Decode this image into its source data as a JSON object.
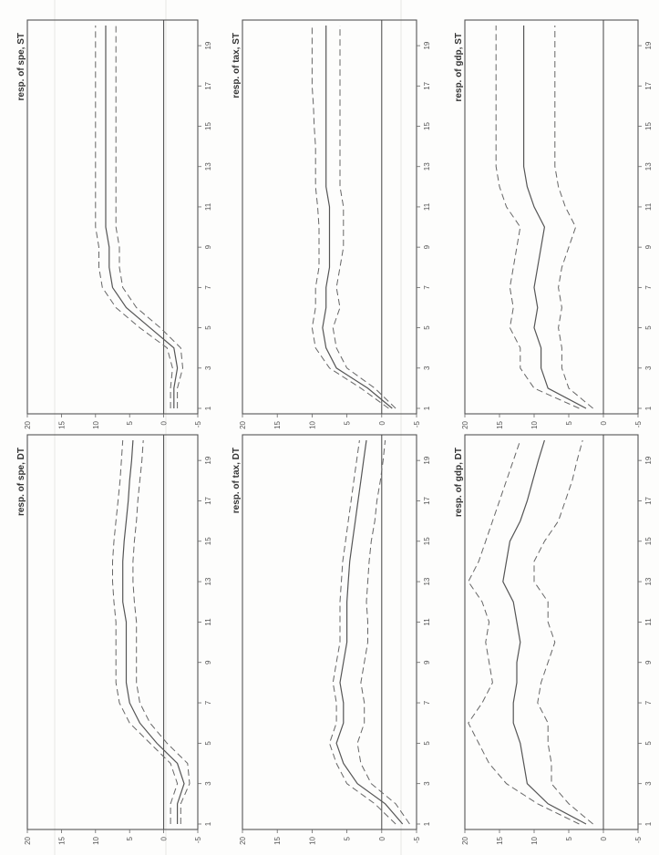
{
  "chart_data": [
    {
      "type": "line",
      "title": "resp. of spe, DT",
      "x": [
        1,
        2,
        3,
        4,
        5,
        6,
        7,
        8,
        9,
        10,
        11,
        12,
        13,
        14,
        15,
        16,
        17,
        18,
        19,
        20
      ],
      "xticks": [
        "1",
        "3",
        "5",
        "7",
        "9",
        "11",
        "13",
        "15",
        "17",
        "19"
      ],
      "yticks": [
        "-5",
        "0",
        "5",
        "10",
        "15",
        "20"
      ],
      "ylim": [
        -5,
        20
      ],
      "series": [
        {
          "role": "estimate",
          "values": [
            -2,
            -2,
            -3,
            -2,
            1,
            3.5,
            5,
            5.5,
            5.5,
            5.5,
            5.5,
            6,
            6,
            6,
            5.8,
            5.5,
            5.2,
            5,
            4.7,
            4.5
          ]
        },
        {
          "role": "upper",
          "values": [
            -1,
            -1,
            -2,
            -1,
            2,
            5,
            6.5,
            7,
            7,
            7,
            7,
            7.3,
            7.5,
            7.5,
            7.3,
            7,
            6.7,
            6.4,
            6.2,
            6
          ]
        },
        {
          "role": "lower",
          "values": [
            -2.5,
            -2.5,
            -3.8,
            -3.5,
            -0.5,
            2,
            3.5,
            4,
            4,
            4,
            4,
            4.3,
            4.5,
            4.5,
            4.3,
            4,
            3.8,
            3.5,
            3.2,
            3
          ]
        }
      ]
    },
    {
      "type": "line",
      "title": "resp. of tax, DT",
      "x": [
        1,
        2,
        3,
        4,
        5,
        6,
        7,
        8,
        9,
        10,
        11,
        12,
        13,
        14,
        15,
        16,
        17,
        18,
        19,
        20
      ],
      "xticks": [
        "1",
        "3",
        "5",
        "7",
        "9",
        "11",
        "13",
        "15",
        "17",
        "19"
      ],
      "yticks": [
        "-5",
        "0",
        "5",
        "10",
        "15",
        "20"
      ],
      "ylim": [
        -5,
        20
      ],
      "series": [
        {
          "role": "estimate",
          "values": [
            -3,
            -0.5,
            3.5,
            5.5,
            6.5,
            5.5,
            5.5,
            6,
            5.5,
            5,
            5,
            5,
            4.8,
            4.6,
            4.2,
            3.8,
            3.4,
            3,
            2.6,
            2.2
          ]
        },
        {
          "role": "upper",
          "values": [
            -2,
            1,
            5,
            6.5,
            7.5,
            6.5,
            6.5,
            7,
            6.5,
            6,
            6,
            6,
            5.8,
            5.6,
            5.2,
            4.8,
            4.4,
            4,
            3.6,
            3.2
          ]
        },
        {
          "role": "lower",
          "values": [
            -4,
            -2,
            1.5,
            3,
            3.5,
            2.5,
            2.5,
            3,
            2.5,
            2,
            2,
            2.2,
            2,
            1.8,
            1.5,
            1,
            0.7,
            0.2,
            -0.2,
            -0.5
          ]
        }
      ]
    },
    {
      "type": "line",
      "title": "resp. of gdp, DT",
      "x": [
        1,
        2,
        3,
        4,
        5,
        6,
        7,
        8,
        9,
        10,
        11,
        12,
        13,
        14,
        15,
        16,
        17,
        18,
        19,
        20
      ],
      "xticks": [
        "1",
        "3",
        "5",
        "7",
        "9",
        "11",
        "13",
        "15",
        "17",
        "19"
      ],
      "yticks": [
        "-5",
        "0",
        "5",
        "10",
        "15",
        "20"
      ],
      "ylim": [
        -5,
        20
      ],
      "series": [
        {
          "role": "estimate",
          "values": [
            2.5,
            8,
            11,
            11.5,
            12,
            13,
            13,
            12.5,
            12.5,
            12,
            12.5,
            13,
            14.5,
            14,
            13.5,
            12,
            11,
            10.2,
            9.4,
            8.5
          ]
        },
        {
          "role": "upper",
          "values": [
            3.5,
            9.5,
            14,
            16.5,
            18,
            19.5,
            17.5,
            16,
            16.5,
            17,
            16.5,
            17.5,
            19.5,
            18,
            17,
            16,
            15,
            14,
            13,
            12
          ]
        },
        {
          "role": "lower",
          "values": [
            1.5,
            5,
            7.5,
            7.5,
            8,
            8,
            9.5,
            9,
            8,
            7,
            8,
            8,
            10,
            10,
            8.5,
            6.5,
            5.5,
            4.5,
            3.8,
            3
          ]
        }
      ]
    },
    {
      "type": "line",
      "title": "resp. of spe, ST",
      "x": [
        1,
        2,
        3,
        4,
        5,
        6,
        7,
        8,
        9,
        10,
        11,
        12,
        13,
        14,
        15,
        16,
        17,
        18,
        19,
        20
      ],
      "xticks": [
        "1",
        "3",
        "5",
        "7",
        "9",
        "11",
        "13",
        "15",
        "17",
        "19"
      ],
      "yticks": [
        "-5",
        "0",
        "5",
        "10",
        "15",
        "20"
      ],
      "ylim": [
        -5,
        20
      ],
      "series": [
        {
          "role": "estimate",
          "values": [
            -1.5,
            -1.5,
            -2,
            -1.5,
            2,
            5.5,
            7.5,
            8,
            8,
            8.5,
            8.5,
            8.5,
            8.5,
            8.5,
            8.5,
            8.5,
            8.5,
            8.5,
            8.5,
            8.5
          ]
        },
        {
          "role": "upper",
          "values": [
            -1,
            -1,
            -1.3,
            -0.5,
            3.5,
            7,
            9,
            9.5,
            9.5,
            10,
            10,
            10,
            10,
            10,
            10,
            10,
            10,
            10,
            10,
            10
          ]
        },
        {
          "role": "lower",
          "values": [
            -2,
            -2,
            -2.8,
            -2.5,
            0.5,
            4,
            6,
            6.5,
            6.5,
            7,
            7,
            7,
            7,
            7,
            7,
            7,
            7,
            7,
            7,
            7
          ]
        }
      ]
    },
    {
      "type": "line",
      "title": "resp. of tax, ST",
      "x": [
        1,
        2,
        3,
        4,
        5,
        6,
        7,
        8,
        9,
        10,
        11,
        12,
        13,
        14,
        15,
        16,
        17,
        18,
        19,
        20
      ],
      "xticks": [
        "1",
        "3",
        "5",
        "7",
        "9",
        "11",
        "13",
        "15",
        "17",
        "19"
      ],
      "yticks": [
        "-5",
        "0",
        "5",
        "10",
        "15",
        "20"
      ],
      "ylim": [
        -5,
        20
      ],
      "series": [
        {
          "role": "estimate",
          "values": [
            -1.5,
            2,
            6.5,
            8,
            8.5,
            8,
            8,
            7.5,
            7.5,
            7.5,
            7.5,
            8,
            8,
            8,
            8,
            8,
            8,
            8,
            8,
            8
          ]
        },
        {
          "role": "upper",
          "values": [
            -1,
            3,
            7.5,
            9.5,
            10,
            9.5,
            9.5,
            9,
            9,
            9,
            9.2,
            9.5,
            9.5,
            9.5,
            9.7,
            9.8,
            10,
            10,
            10,
            10
          ]
        },
        {
          "role": "lower",
          "values": [
            -2,
            1,
            5,
            6.5,
            7,
            6,
            6.5,
            6,
            5.5,
            5.5,
            5.5,
            6,
            6,
            6,
            6,
            6,
            6,
            6,
            6,
            6
          ]
        }
      ]
    },
    {
      "type": "line",
      "title": "resp. of gdp, ST",
      "x": [
        1,
        2,
        3,
        4,
        5,
        6,
        7,
        8,
        9,
        10,
        11,
        12,
        13,
        14,
        15,
        16,
        17,
        18,
        19,
        20
      ],
      "xticks": [
        "1",
        "3",
        "5",
        "7",
        "9",
        "11",
        "13",
        "15",
        "17",
        "19"
      ],
      "yticks": [
        "-5",
        "0",
        "5",
        "10",
        "15",
        "20"
      ],
      "ylim": [
        -5,
        20
      ],
      "series": [
        {
          "role": "estimate",
          "values": [
            2.5,
            8,
            9,
            9,
            10,
            9.5,
            10,
            9.5,
            9,
            8.5,
            10,
            11,
            11.5,
            11.5,
            11.5,
            11.5,
            11.5,
            11.5,
            11.5,
            11.5
          ]
        },
        {
          "role": "upper",
          "values": [
            3.5,
            10,
            12,
            12,
            13.5,
            13,
            13.5,
            13,
            12.5,
            12,
            14,
            15,
            15.5,
            15.5,
            15.5,
            15.5,
            15.5,
            15.5,
            15.5,
            15.5
          ]
        },
        {
          "role": "lower",
          "values": [
            1.5,
            5,
            6,
            6,
            6.5,
            6,
            6.5,
            6,
            5,
            4,
            5.5,
            6.5,
            7,
            7,
            7,
            7,
            7,
            7,
            7,
            7
          ]
        }
      ]
    }
  ]
}
